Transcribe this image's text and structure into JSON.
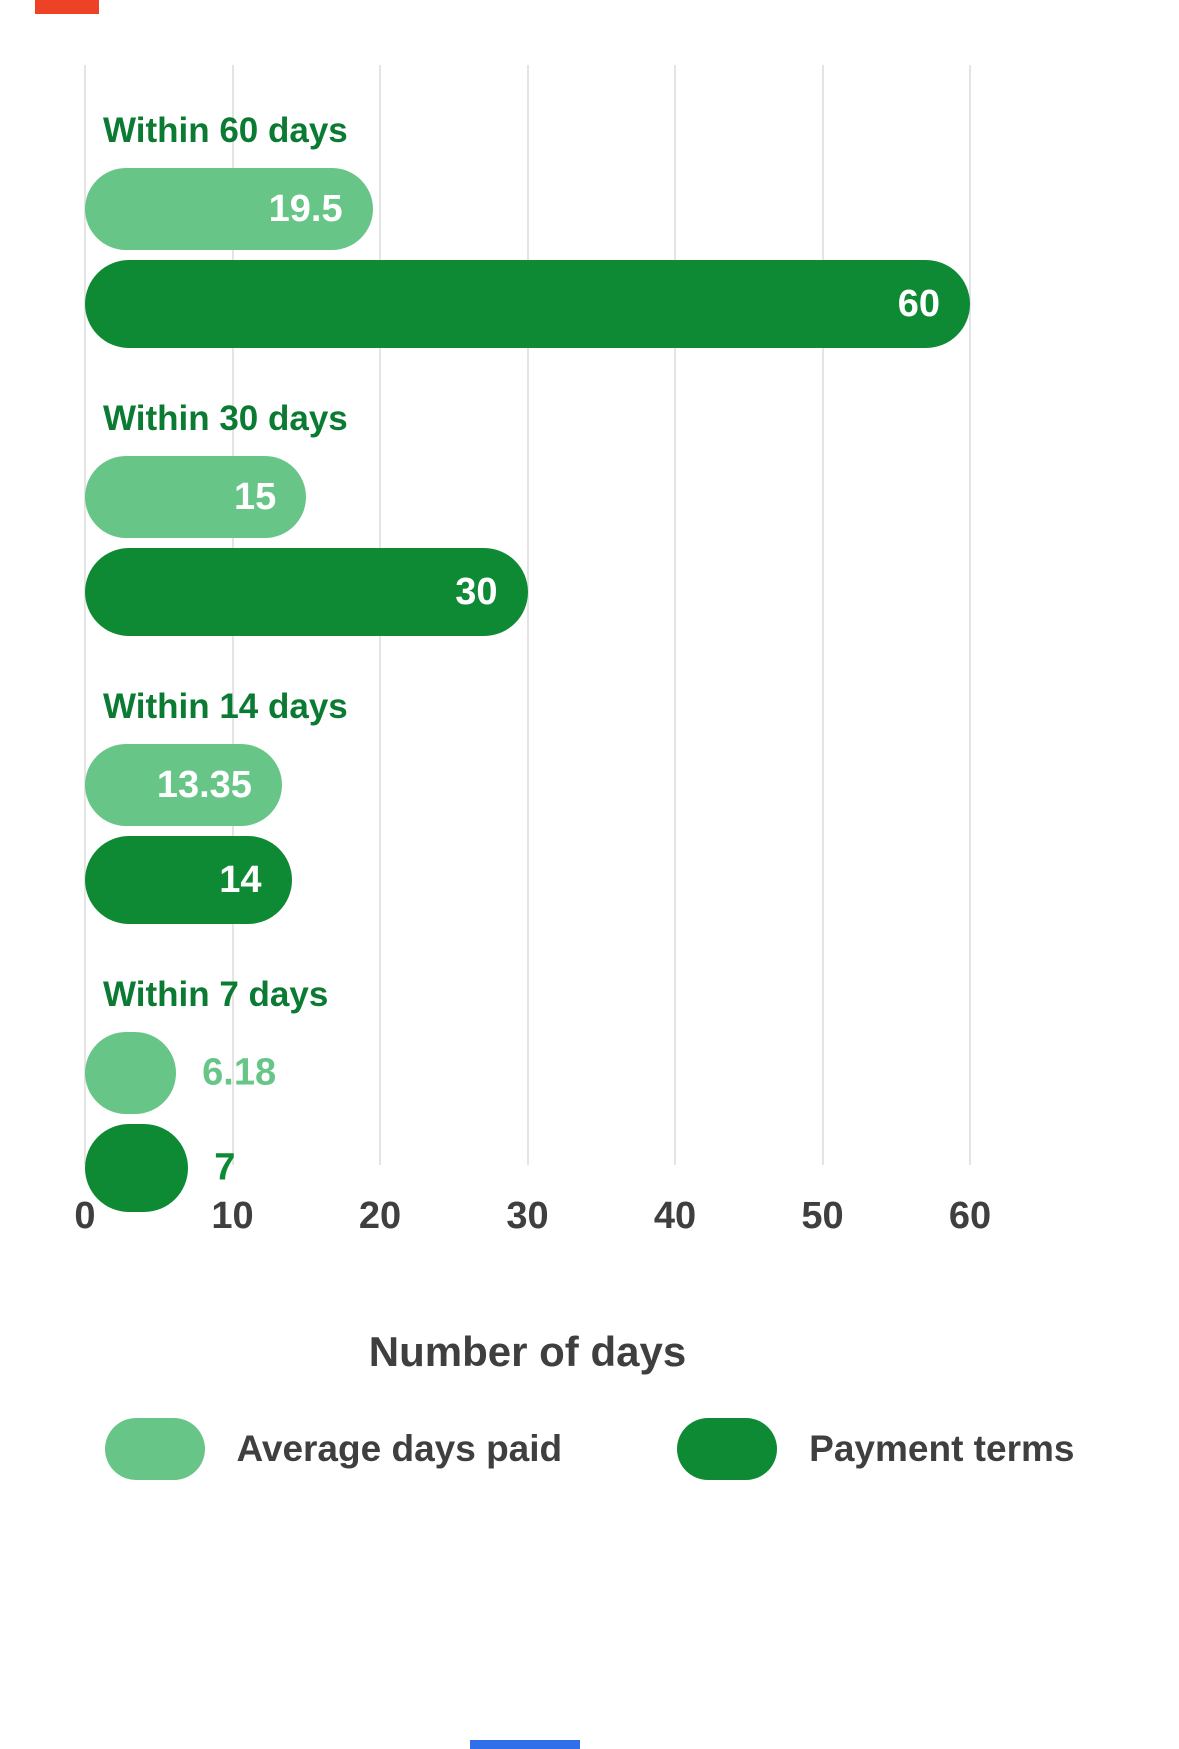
{
  "chart_data": {
    "type": "bar",
    "orientation": "horizontal",
    "title": "",
    "categories": [
      "Within 60 days",
      "Within 30 days",
      "Within 14 days",
      "Within 7 days"
    ],
    "series": [
      {
        "name": "Average days paid",
        "color": "#67c587",
        "values": [
          19.5,
          15,
          13.35,
          6.18
        ]
      },
      {
        "name": "Payment terms",
        "color": "#0e8a34",
        "values": [
          60,
          30,
          14,
          7
        ]
      }
    ],
    "xlabel": "Number of days",
    "ylabel": "",
    "xticks": [
      0,
      10,
      20,
      30,
      40,
      50,
      60
    ],
    "xlim": [
      0,
      60
    ],
    "grid": true,
    "legend_position": "bottom"
  },
  "colors": {
    "category_label": "#0b7b33",
    "axis_text": "#3f3f3f",
    "gridline": "#e4e4e4",
    "bar_value_inside": "#ffffff",
    "top_mark_red": "#ed4226",
    "bottom_mark_blue": "#2f6fea"
  },
  "legend": {
    "items": [
      {
        "label": "Average days paid"
      },
      {
        "label": "Payment terms"
      }
    ]
  }
}
